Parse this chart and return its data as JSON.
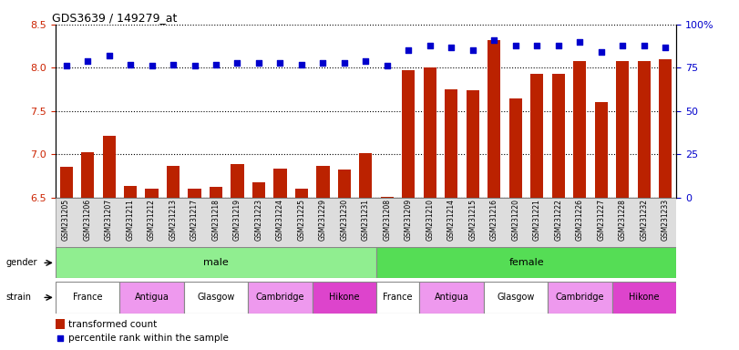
{
  "title": "GDS3639 / 149279_at",
  "samples": [
    "GSM231205",
    "GSM231206",
    "GSM231207",
    "GSM231211",
    "GSM231212",
    "GSM231213",
    "GSM231217",
    "GSM231218",
    "GSM231219",
    "GSM231223",
    "GSM231224",
    "GSM231225",
    "GSM231229",
    "GSM231230",
    "GSM231231",
    "GSM231208",
    "GSM231209",
    "GSM231210",
    "GSM231214",
    "GSM231215",
    "GSM231216",
    "GSM231220",
    "GSM231221",
    "GSM231222",
    "GSM231226",
    "GSM231227",
    "GSM231228",
    "GSM231232",
    "GSM231233"
  ],
  "bar_values": [
    6.86,
    7.03,
    7.22,
    6.64,
    6.61,
    6.87,
    6.6,
    6.63,
    6.89,
    6.68,
    6.84,
    6.6,
    6.87,
    6.83,
    7.02,
    6.51,
    7.97,
    8.0,
    7.75,
    7.74,
    8.32,
    7.65,
    7.93,
    7.93,
    8.08,
    7.6,
    8.08,
    8.08,
    8.1
  ],
  "percentile_values": [
    76,
    79,
    82,
    77,
    76,
    77,
    76,
    77,
    78,
    78,
    78,
    77,
    78,
    78,
    79,
    76,
    85,
    88,
    87,
    85,
    91,
    88,
    88,
    88,
    90,
    84,
    88,
    88,
    87
  ],
  "bar_baseline": 6.5,
  "ylim_left": [
    6.5,
    8.5
  ],
  "ylim_right": [
    0,
    100
  ],
  "yticks_left": [
    6.5,
    7.0,
    7.5,
    8.0,
    8.5
  ],
  "yticks_right": [
    0,
    25,
    50,
    75,
    100
  ],
  "ytick_labels_right": [
    "0",
    "25",
    "50",
    "75",
    "100%"
  ],
  "bar_color": "#BB2200",
  "dot_color": "#0000CC",
  "gender_male_color": "#90EE90",
  "gender_female_color": "#55DD55",
  "strain_names": [
    "France",
    "Antigua",
    "Glasgow",
    "Cambridge",
    "Hikone"
  ],
  "strain_counts_male": [
    3,
    3,
    3,
    3,
    3
  ],
  "strain_counts_female": [
    2,
    3,
    3,
    3,
    3
  ],
  "strain_colors": [
    "#FFFFFF",
    "#EE99EE",
    "#FFFFFF",
    "#EE99EE",
    "#DD44CC"
  ],
  "legend_items": [
    "transformed count",
    "percentile rank within the sample"
  ],
  "legend_colors": [
    "#BB2200",
    "#0000CC"
  ]
}
